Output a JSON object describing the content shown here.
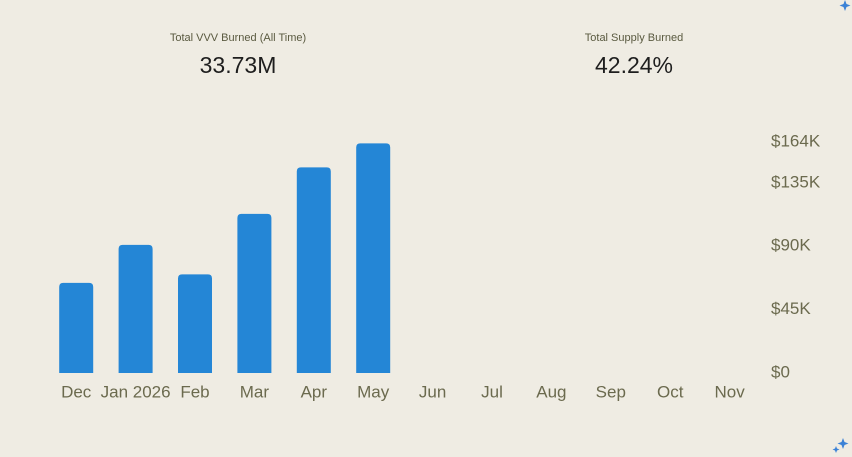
{
  "stats": [
    {
      "label": "Total VVV Burned (All Time)",
      "value": "33.73M"
    },
    {
      "label": "Total Supply Burned",
      "value": "42.24%"
    }
  ],
  "chart_data": {
    "type": "bar",
    "categories": [
      "Dec",
      "Jan 2026",
      "Feb",
      "Mar",
      "Apr",
      "May",
      "Jun",
      "Jul",
      "Aug",
      "Sep",
      "Oct",
      "Nov"
    ],
    "values": [
      64000,
      91000,
      70000,
      113000,
      146000,
      163000,
      null,
      null,
      null,
      null,
      null,
      null
    ],
    "color": "#2486d6",
    "ylim": [
      0,
      164000
    ],
    "yticks": [
      {
        "value": 0,
        "label": "$0"
      },
      {
        "value": 45000,
        "label": "$45K"
      },
      {
        "value": 90000,
        "label": "$90K"
      },
      {
        "value": 135000,
        "label": "$135K"
      },
      {
        "value": 164000,
        "label": "$164K"
      }
    ],
    "grid": false
  }
}
